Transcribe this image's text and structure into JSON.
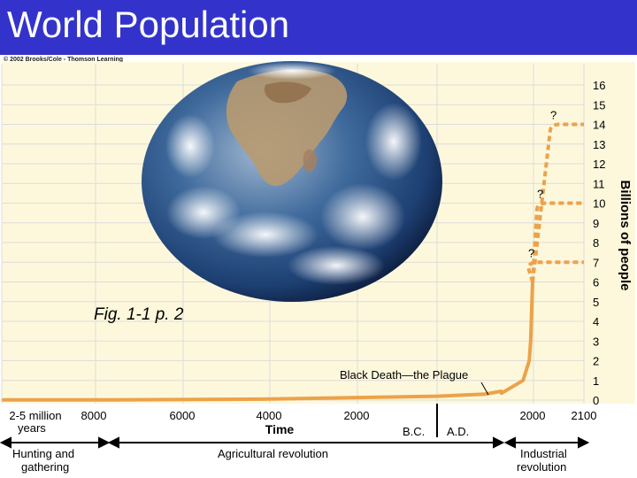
{
  "page": {
    "title": "World Population",
    "copyright": "© 2002 Brooks/Cole - Thomson Learning",
    "figure_ref": "Fig. 1-1 p. 2"
  },
  "colors": {
    "title_bar": "#3333cc",
    "plot_bg": "#fdf8dc",
    "curve": "#eca24a",
    "grid": "#dcdcdc"
  },
  "chart_data": {
    "type": "line",
    "ylabel": "Billions of people",
    "xlabel": "Time",
    "ylim": [
      0,
      16
    ],
    "y_ticks": [
      "0",
      "1",
      "2",
      "3",
      "4",
      "5",
      "6",
      "7",
      "8",
      "9",
      "10",
      "11",
      "12",
      "13",
      "14",
      "15",
      "16"
    ],
    "x_ticks": [
      "2-5 million",
      "8000",
      "6000",
      "4000",
      "2000",
      "2000",
      "2100"
    ],
    "x_tick_sublabel": "years",
    "era_labels": [
      "B.C.",
      "A.D."
    ],
    "grid": true,
    "annotation": "Black Death—the Plague",
    "projection_marks": [
      "?",
      "?",
      "?"
    ],
    "projections": [
      {
        "label": "?",
        "level": 14
      },
      {
        "label": "?",
        "level": 10
      },
      {
        "label": "?",
        "level": 7
      }
    ],
    "periods": [
      {
        "label": "Hunting and gathering"
      },
      {
        "label": "Agricultural revolution"
      },
      {
        "label": "Industrial revolution"
      }
    ],
    "population_curve": [
      {
        "x": "8000 B.C.",
        "y": 0.01
      },
      {
        "x": "4000 B.C.",
        "y": 0.05
      },
      {
        "x": "1 A.D.",
        "y": 0.2
      },
      {
        "x": "1000 A.D.",
        "y": 0.3
      },
      {
        "x": "1340 A.D.",
        "y": 0.45
      },
      {
        "x": "1350 A.D.",
        "y": 0.35
      },
      {
        "x": "1800 A.D.",
        "y": 1.0
      },
      {
        "x": "1930 A.D.",
        "y": 2.0
      },
      {
        "x": "1960 A.D.",
        "y": 3.0
      },
      {
        "x": "2000 A.D.",
        "y": 6.0
      }
    ]
  }
}
